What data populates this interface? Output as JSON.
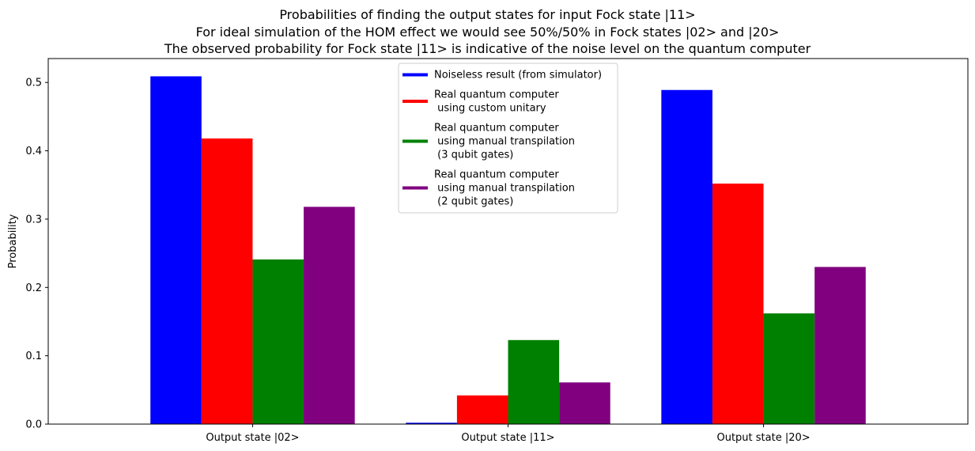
{
  "chart_data": {
    "type": "bar",
    "title_lines": [
      "Probabilities of finding the output states for input Fock state |11>",
      "For ideal simulation of the HOM effect we would see 50%/50% in Fock states |02> and |20>",
      "The observed probability for Fock state |11> is indicative of the noise level on the quantum computer"
    ],
    "xlabel": "",
    "ylabel": "Probability",
    "ylim": [
      0,
      0.535
    ],
    "yticks": [
      0.0,
      0.1,
      0.2,
      0.3,
      0.4,
      0.5
    ],
    "ytick_labels": [
      "0.0",
      "0.1",
      "0.2",
      "0.3",
      "0.4",
      "0.5"
    ],
    "categories": [
      "Output state |02>",
      "Output state |11>",
      "Output state |20>"
    ],
    "grid": false,
    "legend_placement": "top-center",
    "series": [
      {
        "name": "Noiseless result (from simulator)",
        "color": "#0000ff",
        "values": [
          0.509,
          0.002,
          0.489
        ]
      },
      {
        "name": "Real quantum computer\n using custom unitary",
        "color": "#ff0000",
        "values": [
          0.418,
          0.042,
          0.352
        ]
      },
      {
        "name": "Real quantum computer\n using manual transpilation\n (3 qubit gates)",
        "color": "#008000",
        "values": [
          0.241,
          0.123,
          0.162
        ]
      },
      {
        "name": "Real quantum computer\n using manual transpilation\n (2 qubit gates)",
        "color": "#800080",
        "values": [
          0.318,
          0.061,
          0.23
        ]
      }
    ]
  }
}
